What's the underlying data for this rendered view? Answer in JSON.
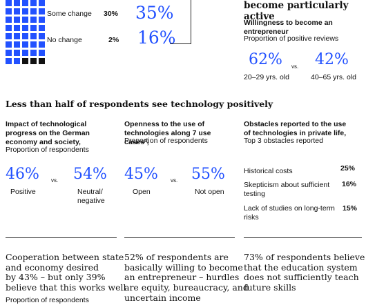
{
  "top_left": {
    "rows": [
      {
        "label": "Some change",
        "pct": "30%",
        "value": "35%"
      },
      {
        "label": "No change",
        "pct": "2%",
        "value": "16%"
      }
    ],
    "waffle": {
      "blue_cells": 37,
      "black_cells": 3,
      "accent": "#2251ff"
    }
  },
  "top_right": {
    "heading_tail": "become particularly active",
    "subtitle_bold": "Willingness to become an entrepreneur",
    "subtitle": "Proportion of positive reviews",
    "left_value": "62%",
    "left_label": "20–29 yrs. old",
    "vs": "vs.",
    "right_value": "42%",
    "right_label": "40–65 yrs. old"
  },
  "section_title": "Less than half of respondents see technology positively",
  "col1": {
    "title": "Impact of technological progress on the German economy and society,",
    "subtitle": "Proportion of respondents",
    "left_value": "46%",
    "left_label": "Positive",
    "vs": "vs.",
    "right_value": "54%",
    "right_label_1": "Neutral/",
    "right_label_2": "negative"
  },
  "col2": {
    "title": "Openness to the use of technologies along 7 use cases¹,",
    "subtitle": "Proportion of respondents",
    "left_value": "45%",
    "left_label": "Open",
    "vs": "vs.",
    "right_value": "55%",
    "right_label": "Not open"
  },
  "col3": {
    "title": "Obstacles reported to the use of technologies in private life,",
    "subtitle": "Top 3 obstacles reported",
    "items": [
      {
        "label_1": "Historical costs",
        "label_2": "",
        "pct": "25%"
      },
      {
        "label_1": "Skepticism about sufficient",
        "label_2": "testing",
        "pct": "16%"
      },
      {
        "label_1": "Lack of studies on long-term",
        "label_2": "risks",
        "pct": "15%"
      }
    ]
  },
  "bottom": {
    "col1_lines": [
      "Cooperation between state",
      "and economy desired",
      "by 43% – but only 39%",
      "believe that this works well"
    ],
    "col1_sub": "Proportion of respondents",
    "col2_lines": [
      "52% of respondents are",
      "basically willing to become",
      "an entrepreneur – hurdles",
      "are equity, bureaucracy, and",
      "uncertain income"
    ],
    "col3_lines": [
      "73% of respondents believe",
      "that the education system",
      "does not sufficiently teach",
      "future skills"
    ]
  }
}
